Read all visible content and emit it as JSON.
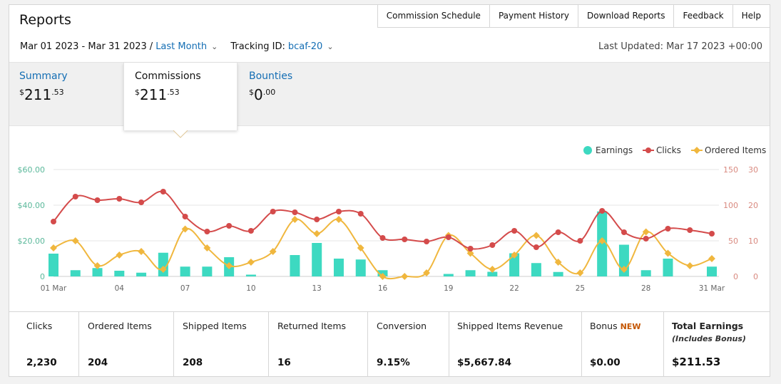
{
  "header": {
    "title": "Reports"
  },
  "topnav": [
    "Commission Schedule",
    "Payment History",
    "Download Reports",
    "Feedback",
    "Help"
  ],
  "filters": {
    "date_range": "Mar 01 2023 - Mar 31 2023",
    "separator": "/",
    "period": "Last Month",
    "tracking_label": "Tracking ID:",
    "tracking_id": "bcaf-20"
  },
  "last_updated": "Last Updated: Mar 17 2023 +00:00",
  "tabs": [
    {
      "label": "Summary",
      "currency": "$",
      "whole": "211",
      "cents": ".53"
    },
    {
      "label": "Commissions",
      "currency": "$",
      "whole": "211",
      "cents": ".53"
    },
    {
      "label": "Bounties",
      "currency": "$",
      "whole": "0",
      "cents": ".00"
    }
  ],
  "active_tab": "Commissions",
  "chart_data": {
    "type": "bar+line",
    "x_tick_labels": [
      "01 Mar",
      "04",
      "07",
      "10",
      "13",
      "16",
      "19",
      "22",
      "25",
      "28",
      "31 Mar"
    ],
    "days": [
      1,
      2,
      3,
      4,
      5,
      6,
      7,
      8,
      9,
      10,
      11,
      12,
      13,
      14,
      15,
      16,
      17,
      18,
      19,
      20,
      21,
      22,
      23,
      24,
      25,
      26,
      27,
      28,
      29,
      30,
      31
    ],
    "series": [
      {
        "name": "Earnings",
        "axis": "left",
        "type": "bar",
        "color": "#3dd9c1",
        "values": [
          12.8,
          3.5,
          4.7,
          3.2,
          2.1,
          13.3,
          5.5,
          5.5,
          10.8,
          1.0,
          0,
          12.0,
          18.8,
          10.0,
          9.5,
          3.5,
          0,
          0,
          1.4,
          3.5,
          2.6,
          13.0,
          7.5,
          2.5,
          0,
          36.5,
          17.8,
          3.5,
          10.0,
          0,
          5.5
        ]
      },
      {
        "name": "Clicks",
        "axis": "right-1",
        "type": "line",
        "color": "#d44b4b",
        "values": [
          77,
          112,
          107,
          109,
          104,
          119,
          84,
          63,
          71,
          64,
          91,
          90,
          80,
          91,
          88,
          54,
          52,
          49,
          55,
          39,
          44,
          64,
          41,
          62,
          50,
          92,
          62,
          53,
          67,
          65,
          60
        ]
      },
      {
        "name": "Ordered Items",
        "axis": "right-2",
        "type": "line",
        "color": "#f0b73e",
        "values": [
          8,
          10,
          3,
          6,
          7,
          2,
          13.3,
          8,
          3,
          4,
          7,
          16,
          12,
          16,
          8,
          0,
          0,
          1,
          11.5,
          6.5,
          2,
          6,
          11.5,
          4,
          1,
          10,
          2,
          12.5,
          6.5,
          3,
          5
        ]
      }
    ],
    "y_left": {
      "ticks": [
        "$60.00",
        "$40.00",
        "$20.00",
        "0"
      ],
      "ylim": [
        0,
        60
      ]
    },
    "y_right_1": {
      "ticks": [
        "150",
        "100",
        "50",
        "0"
      ],
      "ylim": [
        0,
        150
      ]
    },
    "y_right_2": {
      "ticks": [
        "30",
        "20",
        "10",
        "0"
      ],
      "ylim": [
        0,
        30
      ]
    },
    "legend_position": "top-right",
    "grid": true
  },
  "stats": [
    {
      "label": "Clicks",
      "value": "2,230"
    },
    {
      "label": "Ordered Items",
      "value": "204"
    },
    {
      "label": "Shipped Items",
      "value": "208"
    },
    {
      "label": "Returned Items",
      "value": "16"
    },
    {
      "label": "Conversion",
      "value": "9.15%"
    },
    {
      "label": "Shipped Items Revenue",
      "value": "$5,667.84"
    },
    {
      "label": "Bonus",
      "badge": "NEW",
      "value": "$0.00"
    },
    {
      "label": "Total Earnings",
      "sublabel": "(Includes Bonus)",
      "value": "$211.53"
    }
  ]
}
